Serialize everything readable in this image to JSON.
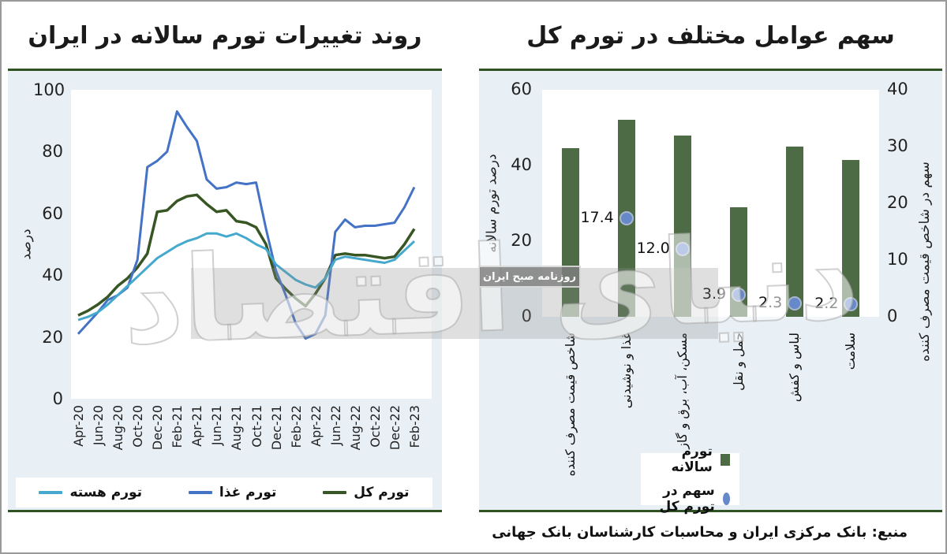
{
  "watermark": {
    "logo_text": "دنیای اقتصاد",
    "badge_text": "روزنامه صبح ایران"
  },
  "source_text": "منبع: بانک مرکزی ایران و محاسبات کارشناسان بانک جهانی",
  "chart_data": [
    {
      "type": "line",
      "title": "روند تغییرات تورم سالانه در ایران",
      "ylabel": "درصد",
      "ylim": [
        0,
        100
      ],
      "yticks": [
        0,
        20,
        40,
        60,
        80,
        100
      ],
      "grid": false,
      "legend_position": "bottom",
      "x": [
        "Apr-20",
        "May-20",
        "Jun-20",
        "Jul-20",
        "Aug-20",
        "Sep-20",
        "Oct-20",
        "Nov-20",
        "Dec-20",
        "Jan-21",
        "Feb-21",
        "Mar-21",
        "Apr-21",
        "May-21",
        "Jun-21",
        "Jul-21",
        "Aug-21",
        "Sep-21",
        "Oct-21",
        "Nov-21",
        "Dec-21",
        "Jan-22",
        "Feb-22",
        "Mar-22",
        "Apr-22",
        "May-22",
        "Jun-22",
        "Jul-22",
        "Aug-22",
        "Sep-22",
        "Oct-22",
        "Nov-22",
        "Dec-22",
        "Jan-23",
        "Feb-23"
      ],
      "x_ticks_shown": [
        "Apr-20",
        "Jun-20",
        "Aug-20",
        "Oct-20",
        "Dec-20",
        "Feb-21",
        "Apr-21",
        "Jun-21",
        "Aug-21",
        "Oct-21",
        "Dec-21",
        "Feb-22",
        "Apr-22",
        "Jun-22",
        "Aug-22",
        "Oct-22",
        "Dec-22",
        "Feb-23"
      ],
      "series": [
        {
          "name": "تورم کل",
          "color": "#375623",
          "values": [
            27,
            28.5,
            30.5,
            33,
            36.5,
            39,
            42.5,
            47,
            60.5,
            61,
            64,
            65.5,
            66,
            63,
            60.5,
            61,
            57.5,
            57,
            55.5,
            50,
            39,
            35.5,
            32.5,
            30,
            34,
            39,
            46.5,
            47,
            46.5,
            46.5,
            46,
            45.5,
            46,
            50,
            55
          ]
        },
        {
          "name": "تورم غذا",
          "color": "#4472c4",
          "values": [
            21,
            24.5,
            28,
            32,
            33.5,
            36,
            45,
            75,
            77,
            80,
            93,
            88,
            83.5,
            71,
            68,
            68.5,
            70,
            69.5,
            70,
            55,
            41.5,
            33.5,
            24.5,
            19.5,
            21,
            27,
            54,
            58,
            55.5,
            56,
            56,
            56.5,
            57,
            62,
            68.5
          ]
        },
        {
          "name": "تورم هسته",
          "color": "#45a9cd",
          "values": [
            25.5,
            26.5,
            28,
            30.5,
            33.5,
            36.5,
            39.5,
            42.5,
            45.5,
            47.5,
            49.5,
            51,
            52,
            53.5,
            53.5,
            52.5,
            53.5,
            52,
            50,
            48.5,
            43.5,
            41,
            38.5,
            37,
            36,
            39,
            45,
            46,
            45.5,
            45,
            44.5,
            44,
            45,
            48,
            51
          ]
        }
      ]
    },
    {
      "type": "bar",
      "title": "سهم عوامل مختلف در تورم کل",
      "ylabel_left": "درصد تورم سالانه",
      "ylabel_right": "سهم در شاخص قیمت مصرف کننده",
      "ylim_left": [
        0,
        60
      ],
      "yticks_left": [
        0,
        20,
        40,
        60
      ],
      "ylim_right": [
        0,
        40
      ],
      "yticks_right": [
        0,
        10,
        20,
        30,
        40
      ],
      "grid": false,
      "categories": [
        "شاخص قیمت مصرف کننده",
        "غذا و نوشیدنی",
        "مسکن، آب، برق و گاز",
        "حمل و نقل",
        "لباس و کفش",
        "سلامت"
      ],
      "series": [
        {
          "name": "تورم سالانه",
          "kind": "bar",
          "axis": "left",
          "color": "#4d6c46",
          "values": [
            44.5,
            52,
            48,
            29,
            45,
            41.5
          ]
        },
        {
          "name": "سهم در تورم کل",
          "kind": "scatter",
          "axis": "right",
          "color": "#6689ca",
          "values": [
            null,
            17.4,
            12.0,
            3.9,
            2.3,
            2.2
          ],
          "labels": [
            "",
            "17.4",
            "12.0",
            "3.9",
            "2.3",
            "2.2"
          ]
        }
      ]
    }
  ]
}
